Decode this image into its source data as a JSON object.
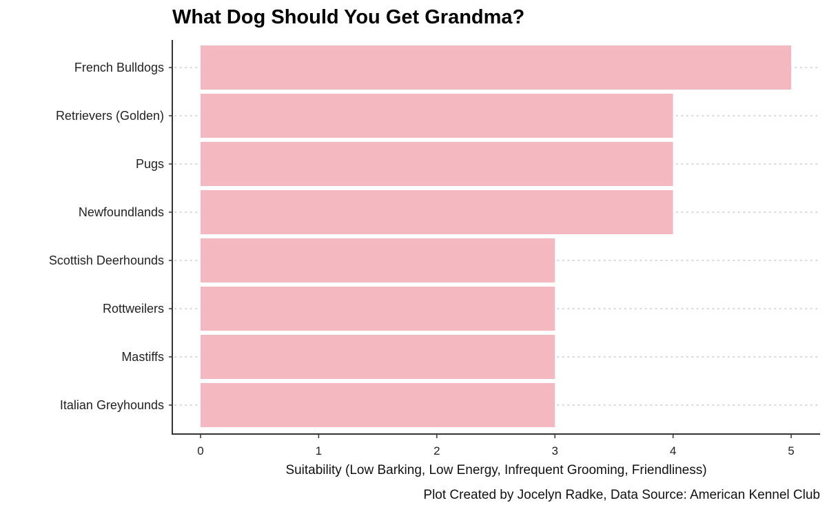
{
  "chart_data": {
    "type": "bar",
    "orientation": "horizontal",
    "title": "What Dog Should You Get Grandma?",
    "xlabel": "Suitability (Low Barking, Low Energy, Infrequent Grooming, Friendliness)",
    "ylabel": "",
    "caption": "Plot Created by Jocelyn Radke, Data Source: American Kennel Club",
    "categories": [
      "French Bulldogs",
      "Retrievers (Golden)",
      "Pugs",
      "Newfoundlands",
      "Scottish Deerhounds",
      "Rottweilers",
      "Mastiffs",
      "Italian Greyhounds"
    ],
    "values": [
      5,
      4,
      4,
      4,
      3,
      3,
      3,
      3
    ],
    "xticks": [
      0,
      1,
      2,
      3,
      4,
      5
    ],
    "xlim": [
      0,
      5
    ],
    "grid": "dotted horizontal gridlines per category",
    "legend": "none",
    "bar_color": "#f4b8c0",
    "gridline_color": "#c8c8c8",
    "axis_color": "#333333"
  }
}
